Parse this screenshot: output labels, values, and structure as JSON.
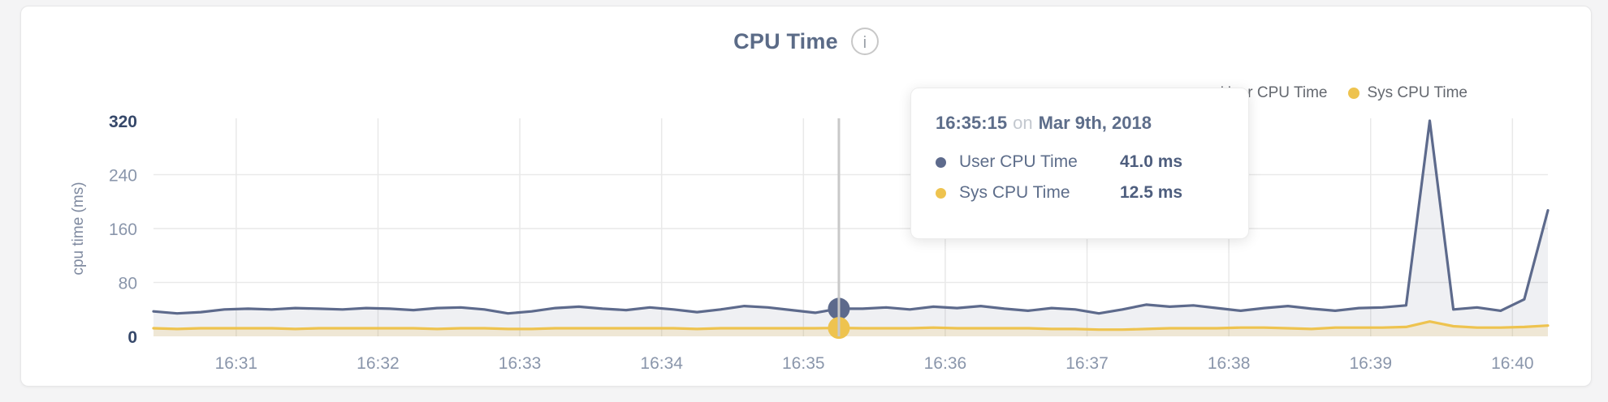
{
  "header": {
    "title": "CPU Time",
    "info_glyph": "i"
  },
  "legend": {
    "items": [
      {
        "label": "User CPU Time",
        "color": "#5d6a8c"
      },
      {
        "label": "Sys CPU Time",
        "color": "#eec34f"
      }
    ]
  },
  "tooltip": {
    "time": "16:35:15",
    "connector": "on",
    "date": "Mar 9th, 2018",
    "rows": [
      {
        "label": "User CPU Time",
        "value": "41.0 ms",
        "color": "#5d6a8c"
      },
      {
        "label": "Sys CPU Time",
        "value": "12.5 ms",
        "color": "#eec34f"
      }
    ]
  },
  "chart_data": {
    "type": "area",
    "title": "CPU Time",
    "ylabel": "cpu time (ms)",
    "ylim": [
      0,
      320
    ],
    "y_ticks": [
      0,
      80,
      160,
      240,
      320
    ],
    "x_tick_labels": [
      "16:31",
      "16:32",
      "16:33",
      "16:34",
      "16:35",
      "16:36",
      "16:37",
      "16:38",
      "16:39",
      "16:40"
    ],
    "grid": true,
    "legend_position": "top-right",
    "hover_index": 29,
    "x": [
      "16:30:25",
      "16:30:35",
      "16:30:45",
      "16:30:55",
      "16:31:05",
      "16:31:15",
      "16:31:25",
      "16:31:35",
      "16:31:45",
      "16:31:55",
      "16:32:05",
      "16:32:15",
      "16:32:25",
      "16:32:35",
      "16:32:45",
      "16:32:55",
      "16:33:05",
      "16:33:15",
      "16:33:25",
      "16:33:35",
      "16:33:45",
      "16:33:55",
      "16:34:05",
      "16:34:15",
      "16:34:25",
      "16:34:35",
      "16:34:45",
      "16:34:55",
      "16:35:05",
      "16:35:15",
      "16:35:25",
      "16:35:35",
      "16:35:45",
      "16:35:55",
      "16:36:05",
      "16:36:15",
      "16:36:25",
      "16:36:35",
      "16:36:45",
      "16:36:55",
      "16:37:05",
      "16:37:15",
      "16:37:25",
      "16:37:35",
      "16:37:45",
      "16:37:55",
      "16:38:05",
      "16:38:15",
      "16:38:25",
      "16:38:35",
      "16:38:45",
      "16:38:55",
      "16:39:05",
      "16:39:15",
      "16:39:25",
      "16:39:35",
      "16:39:45",
      "16:39:55",
      "16:40:05",
      "16:40:15"
    ],
    "series": [
      {
        "name": "User CPU Time",
        "color": "#5d6a8c",
        "fill": "rgba(94,108,141,0.10)",
        "values": [
          37,
          34,
          36,
          40,
          41,
          40,
          42,
          41,
          40,
          42,
          41,
          39,
          42,
          43,
          40,
          34,
          37,
          42,
          44,
          41,
          39,
          43,
          40,
          36,
          40,
          45,
          43,
          39,
          35,
          41,
          41,
          43,
          40,
          44,
          42,
          45,
          41,
          38,
          42,
          40,
          34,
          40,
          47,
          44,
          46,
          42,
          38,
          42,
          45,
          41,
          38,
          42,
          43,
          46,
          320,
          40,
          43,
          38,
          55,
          187
        ]
      },
      {
        "name": "Sys CPU Time",
        "color": "#eec34f",
        "fill": "rgba(237,194,78,0.18)",
        "values": [
          12,
          11,
          12,
          12,
          12,
          12,
          11,
          12,
          12,
          12,
          12,
          12,
          11,
          12,
          12,
          11,
          11,
          12,
          12,
          12,
          12,
          12,
          12,
          11,
          12,
          12,
          12,
          12,
          12,
          12.5,
          12,
          12,
          12,
          13,
          12,
          12,
          12,
          12,
          11,
          11,
          10,
          10,
          11,
          12,
          12,
          12,
          13,
          13,
          12,
          11,
          13,
          13,
          13,
          14,
          22,
          15,
          13,
          13,
          14,
          16
        ]
      }
    ],
    "axis_colors": {
      "tick_mid": "#8a96ab",
      "tick_end": "#36486a",
      "x_tick": "#8a96ab",
      "axis_title": "#7f8aa0"
    },
    "grid_color": "#e9e9e9",
    "hover_line_color": "#c9c9c9"
  }
}
